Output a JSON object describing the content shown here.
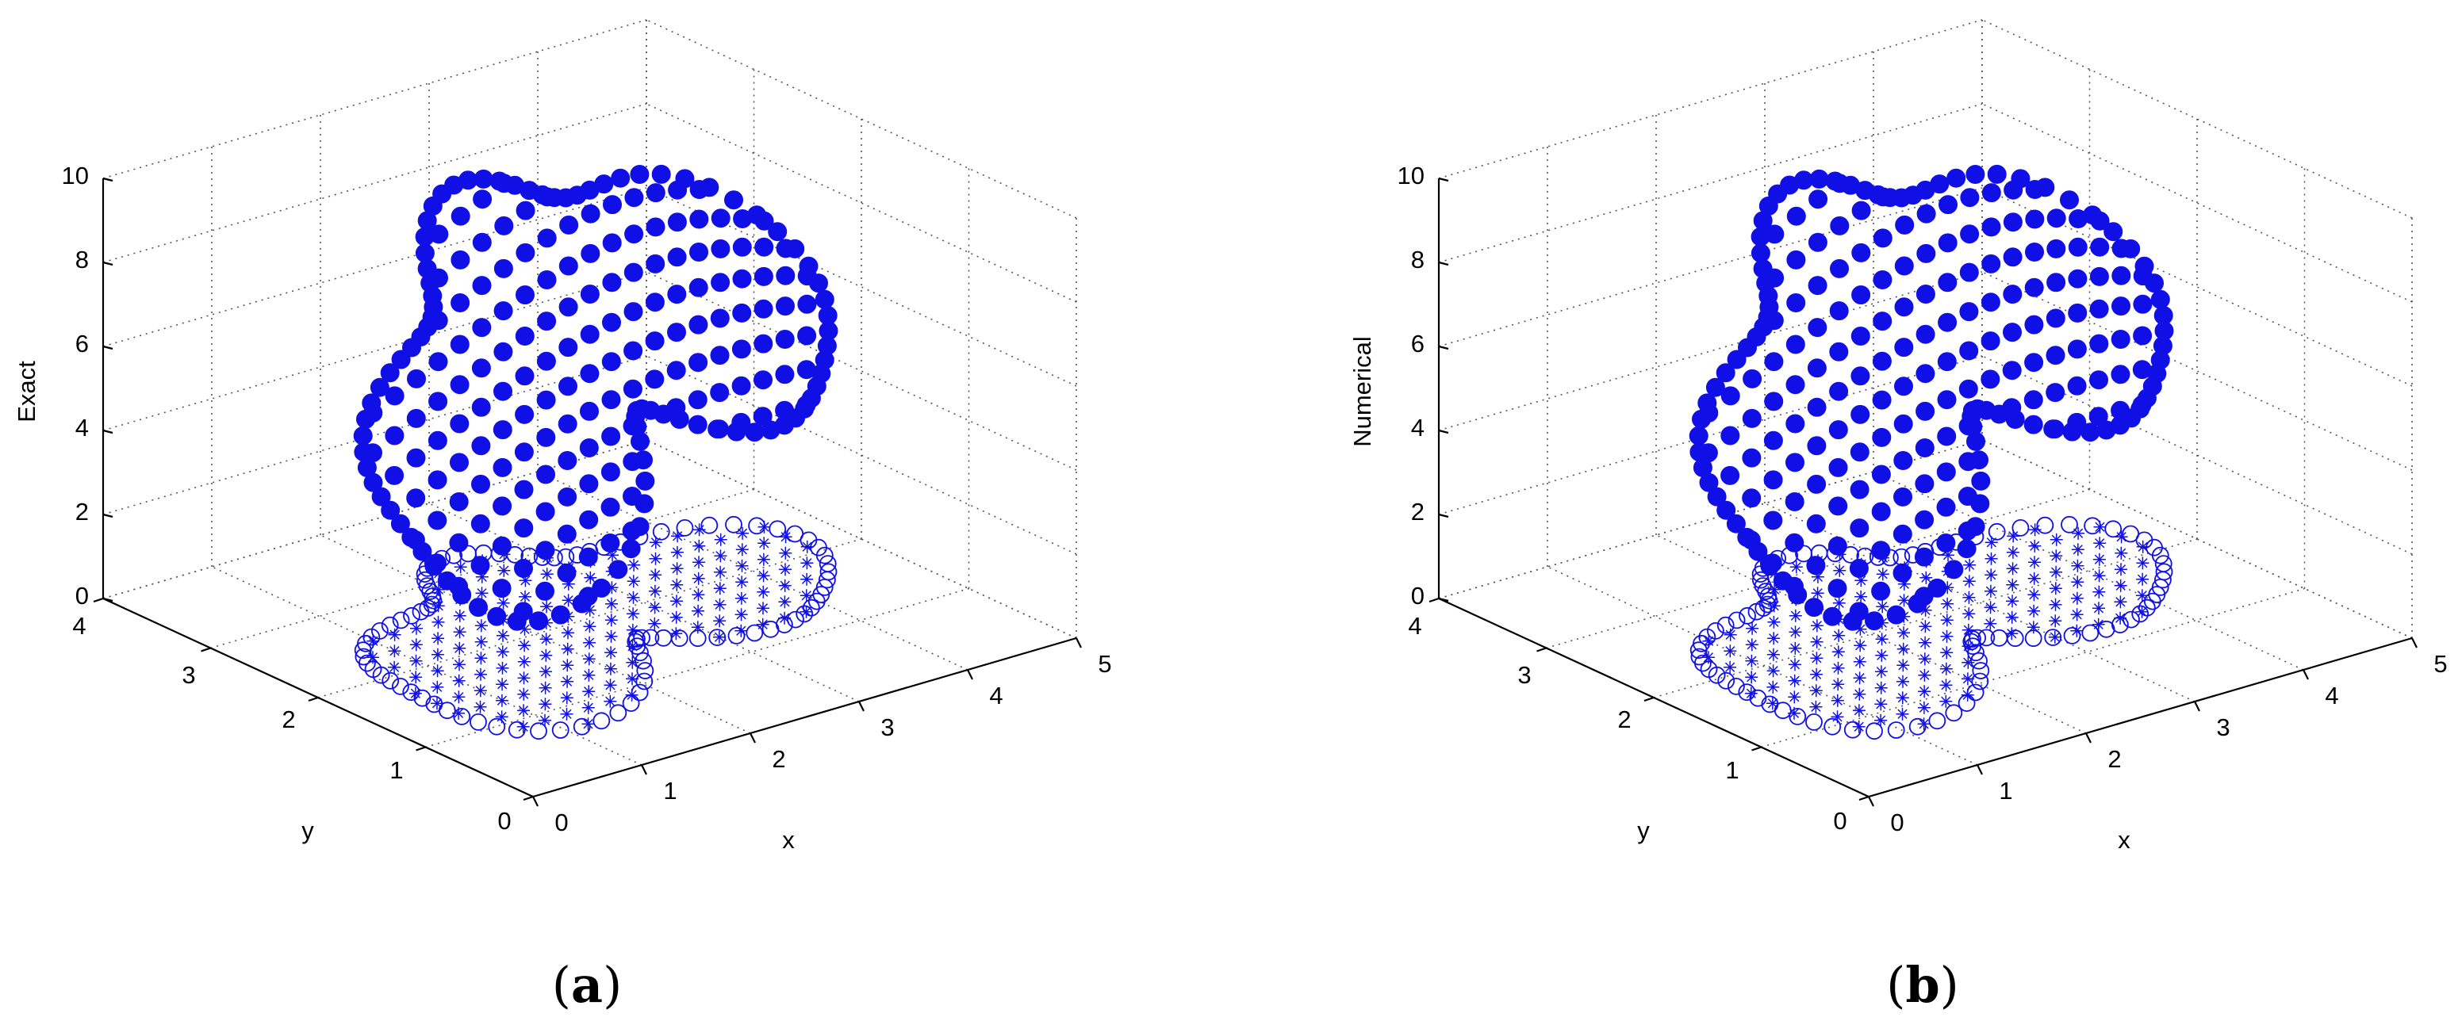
{
  "colors": {
    "marker": "#1010e6",
    "axis": "#000000",
    "grid": "#555555",
    "background": "#ffffff"
  },
  "chart_data": [
    {
      "type": "scatter",
      "zlabel": "Exact",
      "xlabel": "x",
      "ylabel": "y",
      "xlim": [
        0,
        5
      ],
      "ylim": [
        0,
        4
      ],
      "zlim": [
        0,
        10
      ],
      "x_ticks": [
        "0",
        "1",
        "2",
        "3",
        "4",
        "5"
      ],
      "y_ticks": [
        "0",
        "1",
        "2",
        "3",
        "4"
      ],
      "z_ticks": [
        "0",
        "2",
        "4",
        "6",
        "8",
        "10"
      ],
      "grid": true,
      "caption": {
        "open": "(",
        "letter": "a",
        "close": ")"
      },
      "series": [
        {
          "marker": "filled-circle",
          "role": "solution surface"
        },
        {
          "marker": "open-circle",
          "role": "boundary collocation points"
        },
        {
          "marker": "asterisk",
          "role": "interior collocation points"
        }
      ]
    },
    {
      "type": "scatter",
      "zlabel": "Numerical",
      "xlabel": "x",
      "ylabel": "y",
      "xlim": [
        0,
        5
      ],
      "ylim": [
        0,
        4
      ],
      "zlim": [
        0,
        10
      ],
      "x_ticks": [
        "0",
        "1",
        "2",
        "3",
        "4",
        "5"
      ],
      "y_ticks": [
        "0",
        "1",
        "2",
        "3",
        "4"
      ],
      "z_ticks": [
        "0",
        "2",
        "4",
        "6",
        "8",
        "10"
      ],
      "grid": true,
      "caption": {
        "open": "(",
        "letter": "b",
        "close": ")"
      },
      "series": [
        {
          "marker": "filled-circle",
          "role": "solution surface"
        },
        {
          "marker": "open-circle",
          "role": "boundary collocation points"
        },
        {
          "marker": "asterisk",
          "role": "interior collocation points"
        }
      ]
    }
  ]
}
